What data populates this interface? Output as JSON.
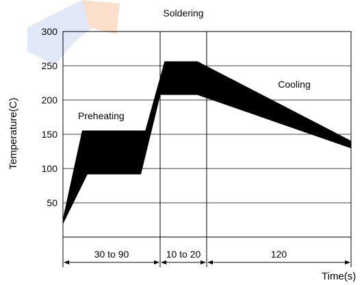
{
  "chart_data": {
    "type": "area",
    "title": "",
    "xlabel": "Time(s)",
    "ylabel": "Temperature(C)",
    "ylim": [
      0,
      300
    ],
    "yticks": [
      50,
      100,
      150,
      200,
      250,
      300
    ],
    "grid": true,
    "zones": [
      {
        "name": "Preheating",
        "duration_label": "30 to 90"
      },
      {
        "name": "Soldering",
        "duration_label": "10 to 20"
      },
      {
        "name": "Cooling",
        "duration_label": "120"
      }
    ],
    "band": {
      "upper": [
        {
          "x": 0.0,
          "y": 25
        },
        {
          "x": 0.2,
          "y": 155
        },
        {
          "x": 0.85,
          "y": 155
        },
        {
          "x": 1.1,
          "y": 256
        },
        {
          "x": 1.8,
          "y": 256
        },
        {
          "x": 3.0,
          "y": 140
        }
      ],
      "lower": [
        {
          "x": 3.0,
          "y": 130
        },
        {
          "x": 1.8,
          "y": 208
        },
        {
          "x": 1.3,
          "y": 208
        },
        {
          "x": 1.0,
          "y": 208
        },
        {
          "x": 0.8,
          "y": 92
        },
        {
          "x": 0.25,
          "y": 92
        },
        {
          "x": 0.0,
          "y": 20
        }
      ]
    },
    "colors": {
      "band": "#000000",
      "grid": "#000000",
      "watermark_accent": "#f07b22",
      "watermark_blue": "#4a74c9"
    }
  }
}
